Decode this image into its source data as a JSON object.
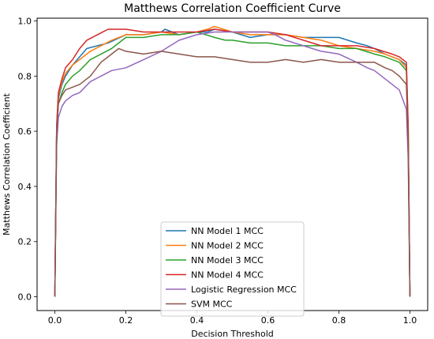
{
  "chart_data": {
    "type": "line",
    "title": "Matthews Correlation Coefficient Curve",
    "xlabel": "Decision Threshold",
    "ylabel": "Matthews Correlation Coefficient",
    "xlim": [
      -0.05,
      1.05
    ],
    "ylim": [
      -0.05,
      1.01
    ],
    "xticks": [
      "0.0",
      "0.2",
      "0.4",
      "0.6",
      "0.8",
      "1.0"
    ],
    "yticks": [
      "0.0",
      "0.2",
      "0.4",
      "0.6",
      "0.8",
      "1.0"
    ],
    "grid": false,
    "legend_position": "lower-center",
    "series": [
      {
        "name": "NN Model 1 MCC",
        "color": "#1f77b4",
        "x": [
          0,
          0.005,
          0.01,
          0.02,
          0.03,
          0.05,
          0.07,
          0.09,
          0.12,
          0.15,
          0.2,
          0.25,
          0.3,
          0.31,
          0.33,
          0.35,
          0.4,
          0.43,
          0.45,
          0.5,
          0.55,
          0.6,
          0.65,
          0.7,
          0.75,
          0.8,
          0.85,
          0.88,
          0.9,
          0.93,
          0.95,
          0.97,
          0.99,
          0.995,
          1.0
        ],
        "y": [
          0,
          0.6,
          0.72,
          0.77,
          0.8,
          0.84,
          0.87,
          0.9,
          0.91,
          0.92,
          0.95,
          0.95,
          0.96,
          0.97,
          0.96,
          0.95,
          0.96,
          0.96,
          0.97,
          0.96,
          0.94,
          0.95,
          0.95,
          0.94,
          0.94,
          0.94,
          0.92,
          0.91,
          0.9,
          0.88,
          0.87,
          0.86,
          0.84,
          0.6,
          0
        ]
      },
      {
        "name": "NN Model 2 MCC",
        "color": "#ff7f0e",
        "x": [
          0,
          0.005,
          0.01,
          0.02,
          0.03,
          0.05,
          0.07,
          0.1,
          0.13,
          0.16,
          0.2,
          0.25,
          0.3,
          0.35,
          0.4,
          0.43,
          0.45,
          0.5,
          0.55,
          0.6,
          0.65,
          0.7,
          0.75,
          0.8,
          0.85,
          0.9,
          0.93,
          0.95,
          0.97,
          0.99,
          0.995,
          1.0
        ],
        "y": [
          0,
          0.62,
          0.73,
          0.78,
          0.81,
          0.84,
          0.86,
          0.89,
          0.91,
          0.93,
          0.95,
          0.95,
          0.96,
          0.95,
          0.96,
          0.97,
          0.98,
          0.96,
          0.95,
          0.95,
          0.95,
          0.94,
          0.93,
          0.91,
          0.9,
          0.89,
          0.88,
          0.87,
          0.86,
          0.83,
          0.6,
          0
        ]
      },
      {
        "name": "NN Model 3 MCC",
        "color": "#2ca02c",
        "x": [
          0,
          0.005,
          0.01,
          0.02,
          0.03,
          0.05,
          0.07,
          0.1,
          0.13,
          0.16,
          0.2,
          0.25,
          0.3,
          0.35,
          0.4,
          0.45,
          0.48,
          0.5,
          0.55,
          0.6,
          0.65,
          0.7,
          0.75,
          0.8,
          0.85,
          0.9,
          0.93,
          0.95,
          0.97,
          0.99,
          0.995,
          1.0
        ],
        "y": [
          0,
          0.6,
          0.7,
          0.74,
          0.77,
          0.8,
          0.82,
          0.86,
          0.88,
          0.9,
          0.94,
          0.94,
          0.95,
          0.95,
          0.96,
          0.94,
          0.93,
          0.93,
          0.92,
          0.92,
          0.91,
          0.91,
          0.91,
          0.9,
          0.9,
          0.88,
          0.87,
          0.86,
          0.85,
          0.82,
          0.6,
          0
        ]
      },
      {
        "name": "NN Model 4 MCC",
        "color": "#d62728",
        "x": [
          0,
          0.005,
          0.01,
          0.02,
          0.03,
          0.05,
          0.07,
          0.09,
          0.12,
          0.15,
          0.2,
          0.25,
          0.3,
          0.35,
          0.4,
          0.45,
          0.5,
          0.55,
          0.6,
          0.65,
          0.7,
          0.75,
          0.8,
          0.85,
          0.9,
          0.95,
          0.97,
          0.99,
          0.995,
          1.0
        ],
        "y": [
          0,
          0.62,
          0.74,
          0.79,
          0.83,
          0.86,
          0.9,
          0.93,
          0.95,
          0.97,
          0.97,
          0.96,
          0.96,
          0.96,
          0.96,
          0.97,
          0.96,
          0.96,
          0.96,
          0.95,
          0.93,
          0.91,
          0.91,
          0.91,
          0.9,
          0.88,
          0.87,
          0.85,
          0.62,
          0
        ]
      },
      {
        "name": "Logistic Regression MCC",
        "color": "#9467bd",
        "x": [
          0,
          0.005,
          0.01,
          0.02,
          0.03,
          0.05,
          0.07,
          0.1,
          0.13,
          0.16,
          0.2,
          0.25,
          0.3,
          0.35,
          0.4,
          0.45,
          0.5,
          0.55,
          0.6,
          0.62,
          0.65,
          0.7,
          0.75,
          0.8,
          0.85,
          0.88,
          0.9,
          0.93,
          0.95,
          0.97,
          0.99,
          0.995,
          1.0
        ],
        "y": [
          0,
          0.55,
          0.65,
          0.69,
          0.71,
          0.73,
          0.74,
          0.78,
          0.8,
          0.82,
          0.83,
          0.86,
          0.89,
          0.93,
          0.95,
          0.96,
          0.96,
          0.96,
          0.96,
          0.95,
          0.93,
          0.91,
          0.89,
          0.88,
          0.85,
          0.83,
          0.82,
          0.79,
          0.77,
          0.75,
          0.68,
          0.5,
          0
        ]
      },
      {
        "name": "SVM MCC",
        "color": "#8c564b",
        "x": [
          0,
          0.005,
          0.01,
          0.02,
          0.03,
          0.05,
          0.07,
          0.1,
          0.13,
          0.16,
          0.18,
          0.2,
          0.25,
          0.3,
          0.35,
          0.4,
          0.45,
          0.5,
          0.55,
          0.6,
          0.65,
          0.7,
          0.75,
          0.8,
          0.85,
          0.9,
          0.93,
          0.95,
          0.97,
          0.99,
          0.995,
          1.0
        ],
        "y": [
          0,
          0.6,
          0.7,
          0.73,
          0.75,
          0.76,
          0.77,
          0.8,
          0.85,
          0.88,
          0.9,
          0.89,
          0.88,
          0.89,
          0.88,
          0.87,
          0.87,
          0.86,
          0.85,
          0.85,
          0.86,
          0.85,
          0.86,
          0.85,
          0.85,
          0.85,
          0.83,
          0.82,
          0.8,
          0.77,
          0.55,
          0
        ]
      }
    ]
  }
}
